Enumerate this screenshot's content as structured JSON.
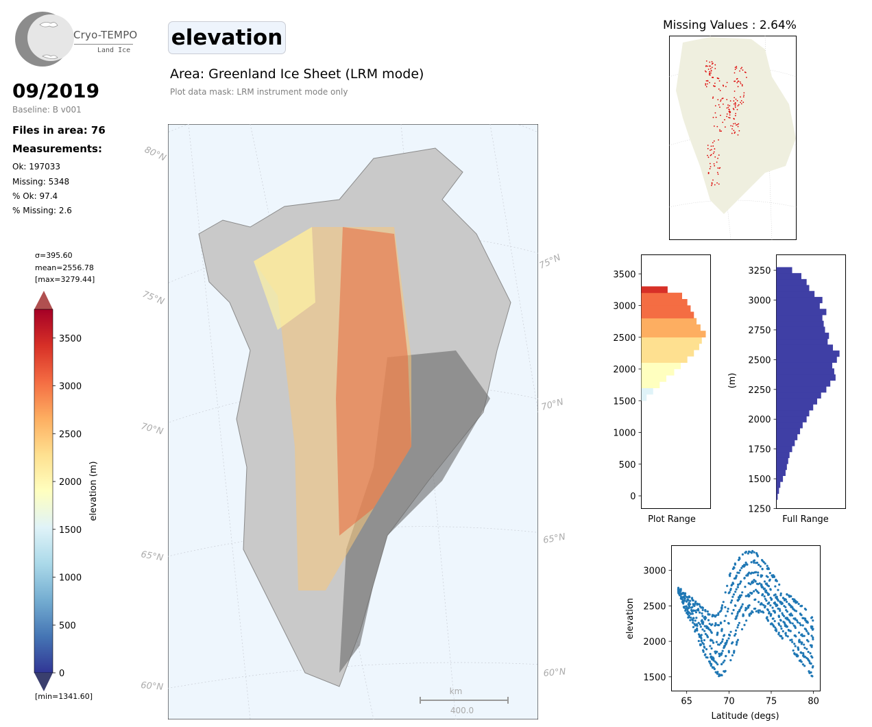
{
  "logo": {
    "title": "Cryo-TEMPO",
    "subtitle": "Land Ice"
  },
  "header": {
    "parameter": "elevation",
    "area_title": "Area: Greenland Ice Sheet (LRM mode)",
    "mask_text": "Plot data mask: LRM instrument mode only"
  },
  "info": {
    "date": "09/2019",
    "baseline": "Baseline: B v001",
    "files": "Files in area: 76",
    "measurements_heading": "Measurements:",
    "ok": "Ok: 197033",
    "missing": "Missing: 5348",
    "pct_ok": "% Ok: 97.4",
    "pct_missing": "% Missing: 2.6"
  },
  "colorbar": {
    "sigma": "σ=395.60",
    "mean": "mean=2556.78",
    "max": "[max=3279.44]",
    "min": "[min=1341.60]",
    "label": "elevation (m)",
    "ticks": [
      "0",
      "500",
      "1000",
      "1500",
      "2000",
      "2500",
      "3000",
      "3500"
    ],
    "colors": [
      "#313695",
      "#4575b4",
      "#74add1",
      "#abd9e9",
      "#e0f3f8",
      "#ffffbf",
      "#fee090",
      "#fdae61",
      "#f46d43",
      "#d73027",
      "#a50026"
    ],
    "under_color": "#3a3f6e",
    "over_color": "#b05050"
  },
  "main_map": {
    "lat_labels_left": [
      "80°N",
      "75°N",
      "70°N",
      "65°N",
      "60°N"
    ],
    "lat_labels_right": [
      "75°N",
      "70°N",
      "65°N",
      "60°N"
    ],
    "scale_unit": "km",
    "scale_value": "400.0",
    "ocean_color": "#eef6fd"
  },
  "missing_map": {
    "title": "Missing Values : 2.64%",
    "land_color": "#efefdf",
    "point_color": "#dd0000"
  },
  "chart_data": [
    {
      "type": "bar",
      "name": "plot-range-histogram",
      "orientation": "horizontal",
      "xlabel": "Plot Range",
      "ylabel": "",
      "ylim": [
        -200,
        3800
      ],
      "yticks": [
        "0",
        "500",
        "1000",
        "1500",
        "2000",
        "2500",
        "3000",
        "3500"
      ],
      "bins_y": [
        1550,
        1650,
        1750,
        1850,
        1950,
        2050,
        2150,
        2250,
        2350,
        2450,
        2550,
        2650,
        2750,
        2850,
        2950,
        3050,
        3150,
        3250
      ],
      "values": [
        0.08,
        0.18,
        0.28,
        0.38,
        0.5,
        0.6,
        0.7,
        0.8,
        0.88,
        0.92,
        0.98,
        0.9,
        0.84,
        0.8,
        0.75,
        0.7,
        0.62,
        0.4
      ]
    },
    {
      "type": "bar",
      "name": "full-range-histogram",
      "orientation": "horizontal",
      "xlabel": "Full Range",
      "ylabel": "(m)",
      "ylim": [
        1250,
        3380
      ],
      "yticks": [
        "1250",
        "1500",
        "1750",
        "2000",
        "2250",
        "2500",
        "2750",
        "3000",
        "3250"
      ],
      "color": "#3f3fa5",
      "bins_y": [
        1350,
        1400,
        1450,
        1500,
        1550,
        1600,
        1650,
        1700,
        1750,
        1800,
        1850,
        1900,
        1950,
        2000,
        2050,
        2100,
        2150,
        2200,
        2250,
        2300,
        2350,
        2400,
        2450,
        2500,
        2550,
        2600,
        2650,
        2700,
        2750,
        2800,
        2850,
        2900,
        2950,
        3000,
        3050,
        3100,
        3150,
        3200,
        3250
      ],
      "values": [
        0.02,
        0.04,
        0.06,
        0.1,
        0.14,
        0.16,
        0.18,
        0.2,
        0.24,
        0.28,
        0.32,
        0.36,
        0.4,
        0.46,
        0.5,
        0.56,
        0.62,
        0.68,
        0.76,
        0.82,
        0.9,
        0.88,
        0.85,
        0.92,
        0.96,
        0.86,
        0.78,
        0.8,
        0.74,
        0.72,
        0.7,
        0.76,
        0.66,
        0.7,
        0.58,
        0.5,
        0.46,
        0.38,
        0.24
      ]
    },
    {
      "type": "scatter",
      "name": "elevation-vs-latitude",
      "xlabel": "Latitude (degs)",
      "ylabel": "elevation",
      "color": "#1f77b4",
      "xlim": [
        63.2,
        80.8
      ],
      "ylim": [
        1300,
        3350
      ],
      "xticks": [
        "65",
        "70",
        "75",
        "80"
      ],
      "yticks": [
        "1500",
        "2000",
        "2500",
        "3000"
      ],
      "envelope_lat": [
        64,
        65,
        66,
        67,
        68,
        69,
        70,
        71,
        72,
        73,
        74,
        75,
        76,
        77,
        78,
        79,
        80
      ],
      "envelope_upper": [
        2750,
        2650,
        2560,
        2450,
        2350,
        2400,
        2900,
        3150,
        3250,
        3260,
        3150,
        2950,
        2800,
        2650,
        2550,
        2450,
        2300
      ],
      "envelope_lower": [
        2700,
        2400,
        2150,
        1850,
        1650,
        1500,
        1650,
        2000,
        2300,
        2450,
        2400,
        2250,
        2100,
        1950,
        1800,
        1650,
        1500
      ]
    }
  ]
}
